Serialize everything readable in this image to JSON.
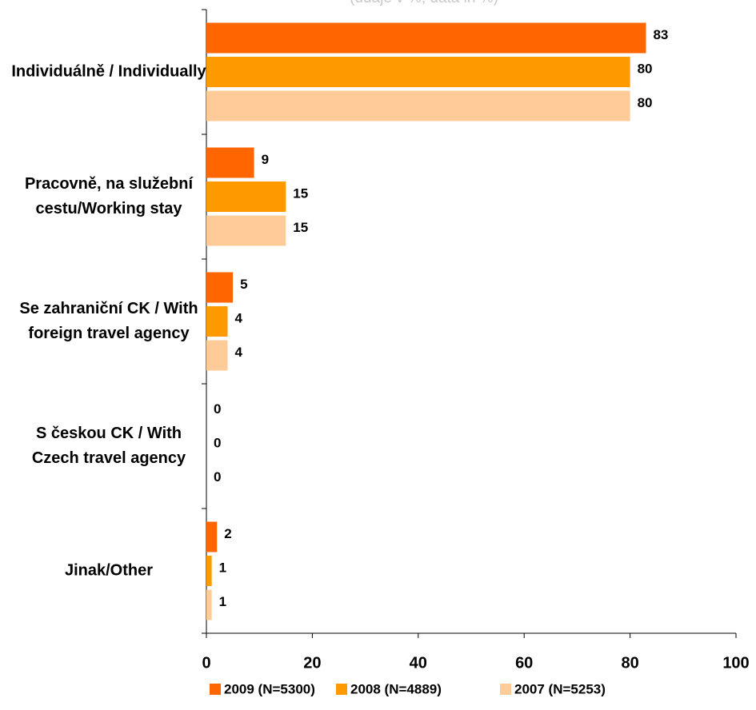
{
  "chart_data": {
    "type": "bar",
    "orientation": "horizontal",
    "subtitle": "(údaje v %, data in %)",
    "categories": [
      "Individuálně / Individually",
      "Pracovně, na služební cestu/Working stay",
      "Se zahraniční CK / With foreign travel agency",
      "S českou CK / With Czech travel agency",
      "Jinak/Other"
    ],
    "series": [
      {
        "name": "2009 (N=5300)",
        "color": "#ff6600",
        "values": [
          83,
          9,
          5,
          0,
          2
        ]
      },
      {
        "name": "2008 (N=4889)",
        "color": "#ff9900",
        "values": [
          80,
          15,
          4,
          0,
          1
        ]
      },
      {
        "name": "2007 (N=5253)",
        "color": "#ffcc99",
        "values": [
          80,
          15,
          4,
          0,
          1
        ]
      }
    ],
    "xlim": [
      0,
      100
    ],
    "xticks": [
      0,
      20,
      40,
      60,
      80,
      100
    ],
    "legend": "bottom"
  }
}
